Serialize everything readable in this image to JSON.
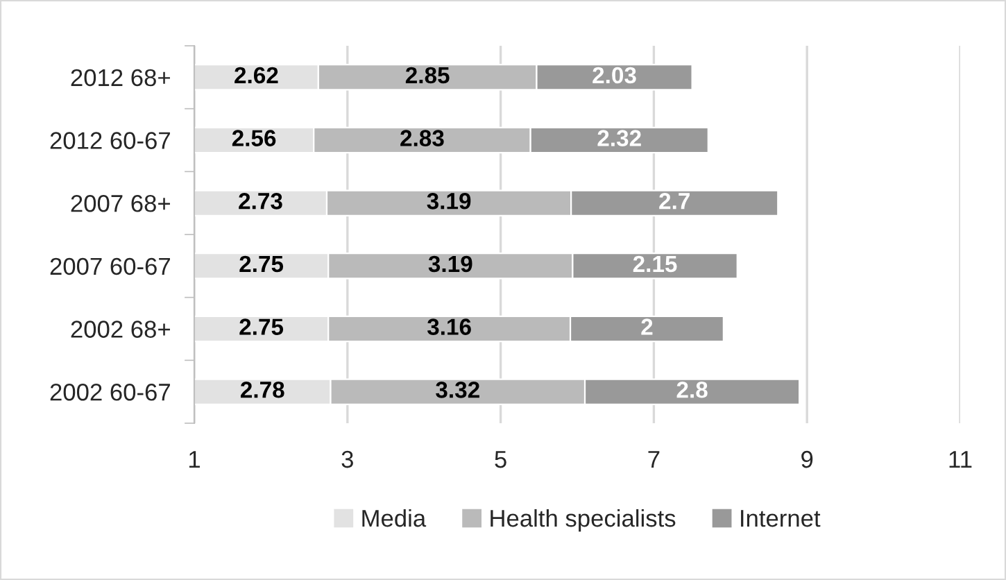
{
  "chart_data": {
    "type": "bar",
    "orientation": "horizontal",
    "stacked": true,
    "categories": [
      "2012 68+",
      "2012 60-67",
      "2007 68+",
      "2007 60-67",
      "2002 68+",
      "2002 60-67"
    ],
    "series": [
      {
        "name": "Media",
        "color": "#e2e2e2",
        "values": [
          2.62,
          2.56,
          2.73,
          2.75,
          2.75,
          2.78
        ]
      },
      {
        "name": "Health specialists",
        "color": "#bababa",
        "values": [
          2.85,
          2.83,
          3.19,
          3.19,
          3.16,
          3.32
        ]
      },
      {
        "name": "Internet",
        "color": "#999999",
        "values": [
          2.03,
          2.32,
          2.7,
          2.15,
          2,
          2.8
        ]
      }
    ],
    "xlim": [
      1,
      11
    ],
    "xticks": [
      1,
      3,
      5,
      7,
      9,
      11
    ],
    "grid": "x",
    "legend": "bottom",
    "data_labels": true
  }
}
